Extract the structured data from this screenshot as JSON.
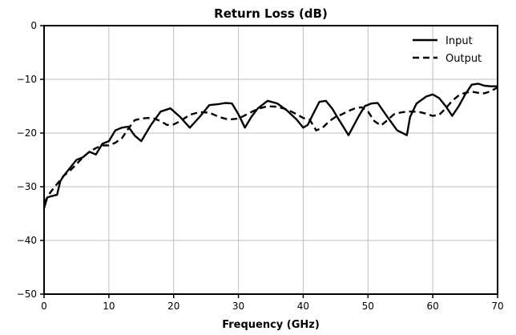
{
  "chart_data": {
    "type": "line",
    "title": "Return Loss (dB)",
    "xlabel": "Frequency (GHz)",
    "ylabel": "",
    "xlim": [
      0,
      70
    ],
    "ylim": [
      -50,
      0
    ],
    "x_ticks": [
      0,
      10,
      20,
      30,
      40,
      50,
      60,
      70
    ],
    "y_ticks": [
      0,
      -10,
      -20,
      -30,
      -40,
      -50
    ],
    "grid": true,
    "legend_position": "top-right",
    "series": [
      {
        "name": "Input",
        "line_style": "solid",
        "color": "#000000",
        "x": [
          0,
          0.5,
          1,
          2,
          2.5,
          3,
          4,
          5,
          6,
          7,
          8,
          9,
          10,
          11,
          12,
          13,
          14,
          15,
          16.5,
          18,
          19.5,
          21,
          22.5,
          24,
          25.5,
          27,
          28,
          29,
          30,
          31,
          32,
          33,
          34.5,
          36,
          37.5,
          39,
          40,
          40.7,
          41.5,
          42.5,
          43.5,
          44.5,
          45.5,
          47,
          48.5,
          49.5,
          50.5,
          51.5,
          53,
          54.5,
          56,
          56.5,
          57.5,
          59,
          60,
          61,
          62,
          63,
          64,
          65,
          66,
          67,
          68,
          69,
          70
        ],
        "y": [
          -34,
          -32,
          -31.8,
          -31.5,
          -29,
          -28,
          -26.5,
          -25,
          -24.5,
          -23.5,
          -24,
          -22,
          -21.5,
          -19.5,
          -19,
          -18.8,
          -20.5,
          -21.5,
          -18.5,
          -16,
          -15.4,
          -17,
          -19,
          -17,
          -14.8,
          -14.6,
          -14.4,
          -14.5,
          -16.5,
          -19,
          -17,
          -15.4,
          -14,
          -14.5,
          -15.8,
          -17.5,
          -19,
          -18.5,
          -16.5,
          -14.2,
          -14,
          -15.5,
          -17.5,
          -20.4,
          -17,
          -15,
          -14.5,
          -14.4,
          -17,
          -19.5,
          -20.4,
          -17,
          -14.5,
          -13.2,
          -12.8,
          -13.5,
          -15,
          -16.8,
          -15,
          -12.8,
          -11,
          -10.8,
          -11.2,
          -11.3,
          -11.3
        ]
      },
      {
        "name": "Output",
        "line_style": "dashed",
        "color": "#000000",
        "x": [
          0,
          1,
          2,
          3,
          4,
          5,
          6,
          7,
          8,
          9,
          10,
          11,
          12,
          13,
          14,
          15,
          16,
          17,
          18,
          19,
          20,
          21,
          22.5,
          24,
          25.5,
          27,
          28.5,
          30,
          31.5,
          33,
          34.5,
          36,
          37.5,
          39,
          40,
          41,
          42,
          43,
          44,
          45,
          46,
          47,
          48,
          49,
          50,
          51,
          52,
          53,
          54,
          55,
          56,
          57,
          58,
          59,
          60,
          61,
          62,
          63,
          64,
          65,
          66,
          67,
          68,
          69,
          70
        ],
        "y": [
          -33,
          -31,
          -29.5,
          -28,
          -27,
          -25.8,
          -24.5,
          -23.5,
          -22.8,
          -22.3,
          -22.3,
          -21.8,
          -21,
          -19.2,
          -17.6,
          -17.3,
          -17.2,
          -17.3,
          -17.8,
          -18.5,
          -18.4,
          -17.8,
          -16.6,
          -16.1,
          -16.2,
          -17,
          -17.5,
          -17.3,
          -16.4,
          -15.5,
          -15,
          -15.1,
          -15.6,
          -16.5,
          -17.2,
          -17.5,
          -19.5,
          -19,
          -17.8,
          -17,
          -16.5,
          -15.9,
          -15.4,
          -15.2,
          -16,
          -17.8,
          -18.6,
          -17.6,
          -16.5,
          -16.2,
          -16,
          -16,
          -16.1,
          -16.4,
          -16.8,
          -16.6,
          -15.4,
          -14,
          -13,
          -12.5,
          -12.3,
          -12.5,
          -12.6,
          -12.2,
          -11.5
        ]
      }
    ]
  }
}
